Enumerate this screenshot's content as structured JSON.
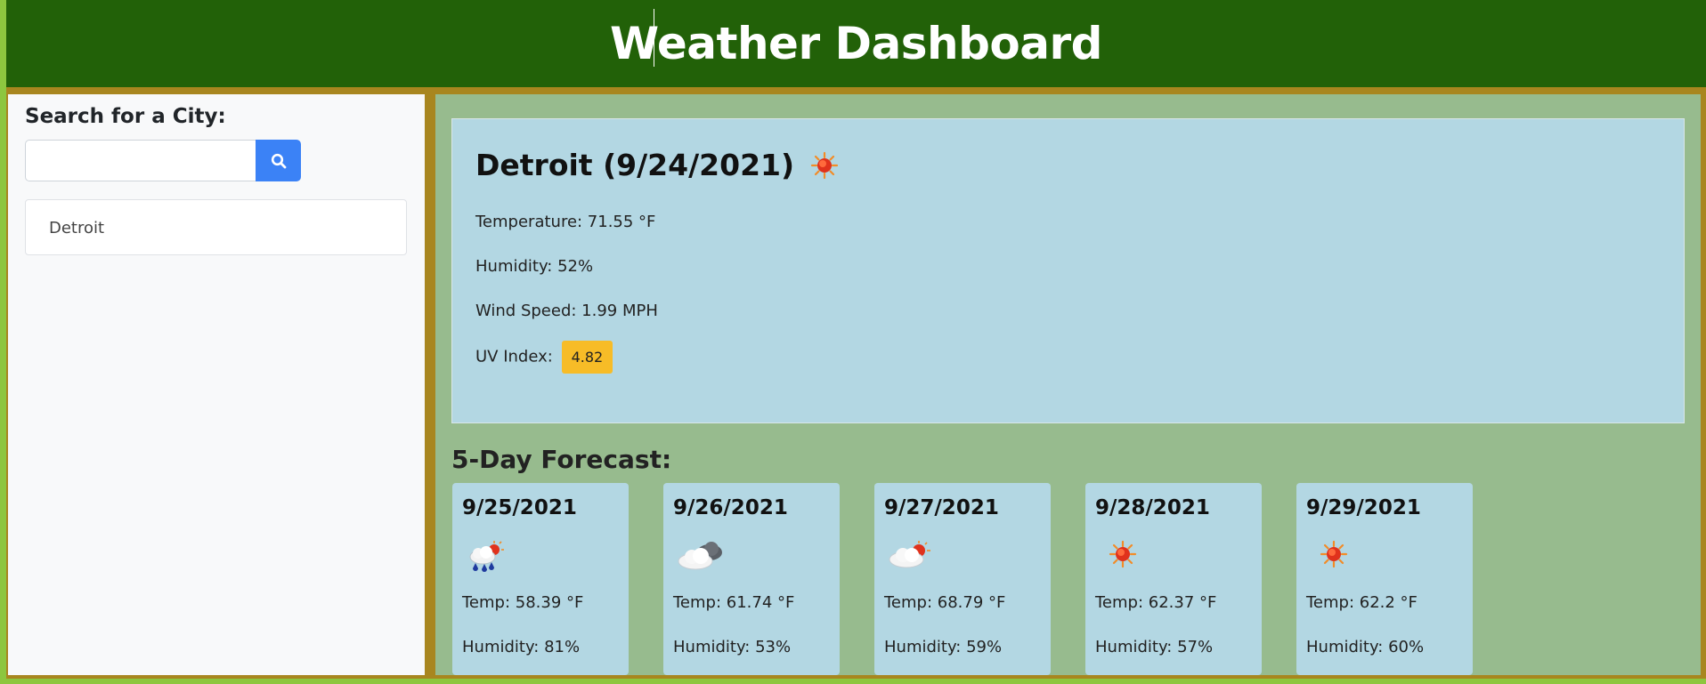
{
  "header": {
    "title": "Weather Dashboard"
  },
  "sidebar": {
    "search_label": "Search for a City:",
    "search_value": "",
    "search_placeholder": "",
    "search_icon": "search-icon",
    "history": [
      "Detroit"
    ]
  },
  "current": {
    "city_date": "Detroit (9/24/2021)",
    "icon": "sun-icon",
    "temperature": "Temperature: 71.55 °F",
    "humidity": "Humidity: 52%",
    "wind": "Wind Speed: 1.99 MPH",
    "uv_label": "UV Index:",
    "uv_value": "4.82",
    "uv_color": "#f7bc27"
  },
  "forecast": {
    "title": "5-Day Forecast:",
    "days": [
      {
        "date": "9/25/2021",
        "icon": "rain-cloud-sun-icon",
        "temp": "Temp: 58.39 °F",
        "humidity": "Humidity: 81%"
      },
      {
        "date": "9/26/2021",
        "icon": "cloudy-icon",
        "temp": "Temp: 61.74 °F",
        "humidity": "Humidity: 53%"
      },
      {
        "date": "9/27/2021",
        "icon": "partly-cloudy-icon",
        "temp": "Temp: 68.79 °F",
        "humidity": "Humidity: 59%"
      },
      {
        "date": "9/28/2021",
        "icon": "sun-icon",
        "temp": "Temp: 62.37 °F",
        "humidity": "Humidity: 57%"
      },
      {
        "date": "9/29/2021",
        "icon": "sun-icon",
        "temp": "Temp: 62.2 °F",
        "humidity": "Humidity: 60%"
      }
    ]
  },
  "colors": {
    "header_bg": "#226108",
    "frame": "#a8861f",
    "main_bg": "#97bb8e",
    "card_bg": "#b3d7e3",
    "search_button": "#3b82f6"
  }
}
